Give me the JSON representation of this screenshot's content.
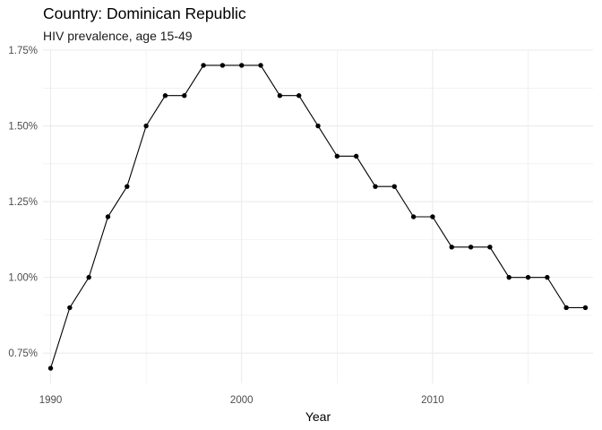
{
  "chart_data": {
    "type": "line",
    "title": "Country: Dominican Republic",
    "subtitle": "HIV prevalence, age 15-49",
    "xlabel": "Year",
    "ylabel": "",
    "x": [
      1990,
      1991,
      1992,
      1993,
      1994,
      1995,
      1996,
      1997,
      1998,
      1999,
      2000,
      2001,
      2002,
      2003,
      2004,
      2005,
      2006,
      2007,
      2008,
      2009,
      2010,
      2011,
      2012,
      2013,
      2014,
      2015,
      2016,
      2017,
      2018
    ],
    "series": [
      {
        "values": [
          0.7,
          0.9,
          1.0,
          1.2,
          1.3,
          1.5,
          1.6,
          1.6,
          1.7,
          1.7,
          1.7,
          1.7,
          1.6,
          1.6,
          1.5,
          1.4,
          1.4,
          1.3,
          1.3,
          1.2,
          1.2,
          1.1,
          1.1,
          1.1,
          1.0,
          1.0,
          1.0,
          0.9,
          0.9
        ]
      }
    ],
    "x_ticks": [
      1990,
      2000,
      2010
    ],
    "x_tick_labels": [
      "1990",
      "2000",
      "2010"
    ],
    "y_ticks": [
      0.75,
      1.0,
      1.25,
      1.5,
      1.75
    ],
    "y_tick_labels": [
      "0.75%",
      "1.00%",
      "1.25%",
      "1.50%",
      "1.75%"
    ],
    "xlim": [
      1989.6,
      2018.4
    ],
    "ylim": [
      0.65,
      1.75
    ],
    "grid": true,
    "line_color": "#000000",
    "grid_color": "#ebebeb"
  }
}
